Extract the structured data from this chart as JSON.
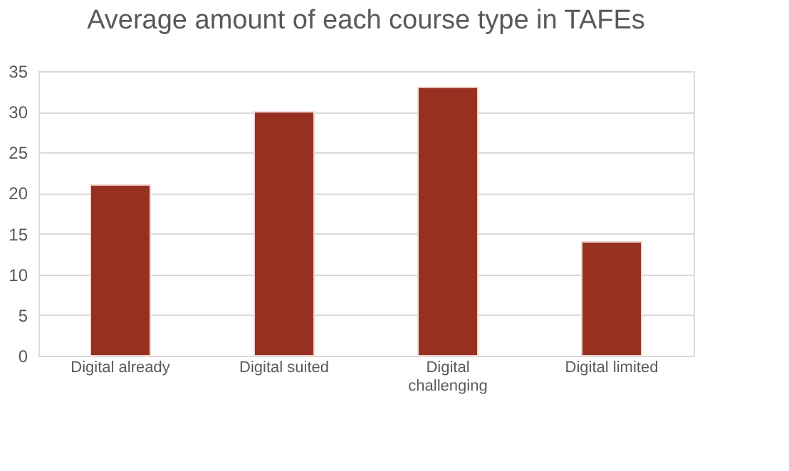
{
  "chart_data": {
    "type": "bar",
    "title": "Average amount of each course type in TAFEs",
    "categories": [
      "Digital already",
      "Digital suited",
      "Digital challenging",
      "Digital limited"
    ],
    "values": [
      21,
      30,
      33,
      14
    ],
    "color": "#963121",
    "ylim": [
      0,
      35
    ],
    "yticks": [
      0,
      5,
      10,
      15,
      20,
      25,
      30,
      35
    ],
    "grid": "y"
  }
}
